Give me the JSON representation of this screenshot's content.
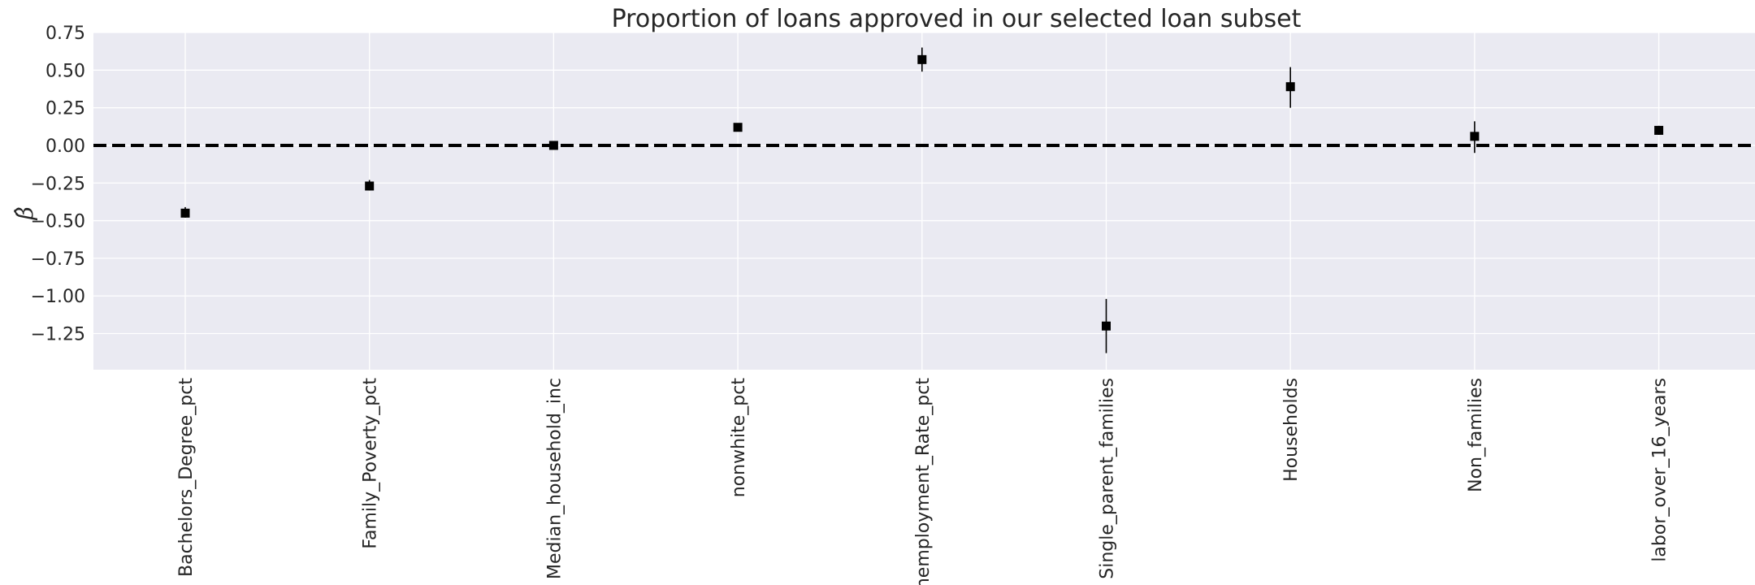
{
  "chart_data": {
    "type": "scatter",
    "title": "Proportion of loans approved in our selected loan subset",
    "xlabel": "",
    "ylabel": "β̂",
    "categories": [
      "Bachelors_Degree_pct",
      "Family_Poverty_pct",
      "Median_household_inc",
      "nonwhite_pct",
      "Unemployment_Rate_pct",
      "Single_parent_families",
      "Households",
      "Non_families",
      "labor_over_16_years"
    ],
    "series": [
      {
        "values": [
          -0.45,
          -0.27,
          0.0,
          0.12,
          0.57,
          -1.2,
          0.39,
          0.06,
          0.1
        ],
        "error_low": [
          -0.48,
          -0.3,
          -0.01,
          0.1,
          0.49,
          -1.38,
          0.25,
          -0.05,
          0.07
        ],
        "error_high": [
          -0.41,
          -0.23,
          0.01,
          0.14,
          0.65,
          -1.02,
          0.52,
          0.16,
          0.13
        ]
      }
    ],
    "reference_line": 0.0,
    "ylim": [
      -1.49,
      0.75
    ],
    "yticks": [
      0.75,
      0.5,
      0.25,
      0.0,
      -0.25,
      -0.5,
      -0.75,
      -1.0,
      -1.25
    ],
    "ytick_labels": [
      "0.75",
      "0.50",
      "0.25",
      "0.00",
      "−0.25",
      "−0.50",
      "−0.75",
      "−1.00",
      "−1.25"
    ],
    "grid": true,
    "colors": {
      "background": "#eaeaf2",
      "grid": "#ffffff",
      "marker": "#000000",
      "text": "#262626"
    }
  }
}
